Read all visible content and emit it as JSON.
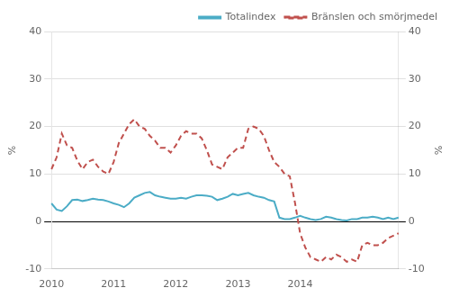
{
  "chart_data": {
    "type": "line",
    "categories": [
      "2010",
      null,
      null,
      null,
      null,
      null,
      null,
      null,
      null,
      null,
      null,
      null,
      "2011",
      null,
      null,
      null,
      null,
      null,
      null,
      null,
      null,
      null,
      null,
      null,
      "2012",
      null,
      null,
      null,
      null,
      null,
      null,
      null,
      null,
      null,
      null,
      null,
      "2013",
      null,
      null,
      null,
      null,
      null,
      null,
      null,
      null,
      null,
      null,
      null,
      "2014",
      null,
      null,
      null,
      null,
      null,
      null,
      null,
      null,
      null,
      null,
      null,
      null,
      null,
      null,
      null,
      null,
      null,
      null,
      null
    ],
    "ylabel": "%",
    "y2label": "%",
    "ylim": [
      -10,
      40
    ],
    "yticks": [
      -10,
      0,
      10,
      20,
      30,
      40
    ],
    "y2lim": [
      -10,
      40
    ],
    "y2ticks": [
      -10,
      0,
      10,
      20,
      30,
      40
    ],
    "grid": true,
    "legend": "upper right",
    "series": [
      {
        "name": "Totalindex",
        "color": "#4BACC6",
        "line_style": "solid",
        "values": [
          3.8,
          2.5,
          2.2,
          3.2,
          4.5,
          4.6,
          4.3,
          4.5,
          4.8,
          4.6,
          4.5,
          4.2,
          3.8,
          3.5,
          3.0,
          3.8,
          5.0,
          5.5,
          6.0,
          6.2,
          5.5,
          5.2,
          5.0,
          4.8,
          4.8,
          5.0,
          4.8,
          5.2,
          5.5,
          5.5,
          5.4,
          5.2,
          4.5,
          4.8,
          5.2,
          5.8,
          5.5,
          5.8,
          6.0,
          5.5,
          5.2,
          5.0,
          4.5,
          4.2,
          0.8,
          0.5,
          0.5,
          0.8,
          1.2,
          0.8,
          0.5,
          0.3,
          0.5,
          1.0,
          0.8,
          0.5,
          0.3,
          0.2,
          0.5,
          0.5,
          0.8,
          0.8,
          1.0,
          0.8,
          0.5,
          0.8,
          0.5,
          0.8
        ]
      },
      {
        "name": "Bränslen och smörjmedel",
        "color": "#C0504D",
        "line_style": "dashed",
        "axis": "y2",
        "values": [
          11.0,
          13.5,
          18.5,
          16.0,
          15.5,
          12.8,
          11.0,
          12.5,
          13.0,
          11.5,
          10.5,
          10.0,
          12.5,
          16.5,
          18.5,
          20.5,
          21.5,
          20.0,
          19.5,
          18.0,
          17.0,
          15.5,
          15.5,
          14.5,
          16.0,
          18.0,
          19.0,
          18.5,
          18.5,
          17.5,
          15.0,
          12.0,
          11.5,
          11.0,
          13.5,
          14.5,
          15.5,
          15.5,
          19.5,
          20.0,
          19.5,
          18.0,
          15.0,
          12.5,
          11.5,
          10.0,
          9.5,
          4.0,
          -2.5,
          -5.5,
          -7.5,
          -8.0,
          -8.5,
          -7.5,
          -8.0,
          -7.0,
          -7.5,
          -8.5,
          -8.0,
          -8.5,
          -5.0,
          -4.5,
          -5.0,
          -5.0,
          -4.5,
          -3.5,
          -3.0,
          -2.5
        ]
      }
    ]
  }
}
